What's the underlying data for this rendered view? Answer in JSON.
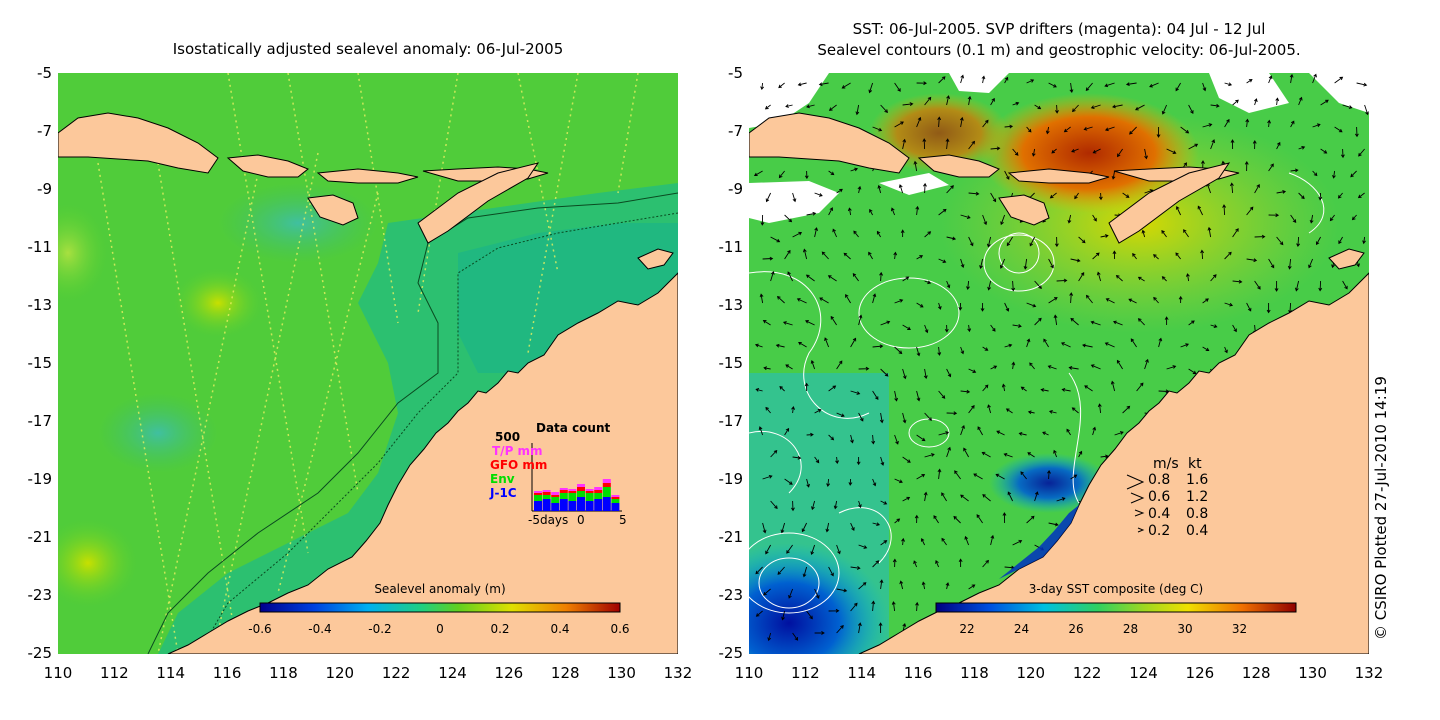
{
  "left_panel": {
    "title": "Isostatically adjusted sealevel anomaly: 06-Jul-2005",
    "colorbar": {
      "label": "Sealevel anomaly (m)",
      "ticks": [
        "-0.6",
        "-0.4",
        "-0.2",
        "0",
        "0.2",
        "0.4",
        "0.6"
      ]
    },
    "data_count": {
      "title": "Data count",
      "max_label": "500",
      "series": [
        {
          "name": "T/P mm",
          "color": "#ff33ff"
        },
        {
          "name": "GFO mm",
          "color": "#ff0000"
        },
        {
          "name": "Env",
          "color": "#00dd00"
        },
        {
          "name": "J-1C",
          "color": "#0000ff"
        }
      ],
      "x_ticks": [
        "-5days",
        "0",
        "5"
      ]
    }
  },
  "right_panel": {
    "title_line1": "SST: 06-Jul-2005. SVP drifters (magenta): 04 Jul - 12 Jul",
    "title_line2": "Sealevel contours (0.1 m) and geostrophic velocity: 06-Jul-2005.",
    "colorbar": {
      "label": "3-day SST composite (deg C)",
      "ticks": [
        "22",
        "24",
        "26",
        "28",
        "30",
        "32"
      ]
    },
    "velocity_legend": {
      "header_ms": "m/s",
      "header_kt": "kt",
      "rows": [
        {
          "ms": "0.8",
          "kt": "1.6"
        },
        {
          "ms": "0.6",
          "kt": "1.2"
        },
        {
          "ms": "0.4",
          "kt": "0.8"
        },
        {
          "ms": "0.2",
          "kt": "0.4"
        }
      ]
    }
  },
  "axes": {
    "y_ticks": [
      "-5",
      "-7",
      "-9",
      "-11",
      "-13",
      "-15",
      "-17",
      "-19",
      "-21",
      "-23",
      "-25"
    ],
    "x_ticks": [
      "110",
      "112",
      "114",
      "116",
      "118",
      "120",
      "122",
      "124",
      "126",
      "128",
      "130",
      "132"
    ],
    "lon_range": [
      110,
      132
    ],
    "lat_range": [
      -25,
      -5
    ]
  },
  "credit": "© CSIRO Plotted 27-Jul-2010 14:19",
  "colors": {
    "land": "#fcc89b",
    "ocean_green": "#33cc33",
    "shelf_teal": "#00c080",
    "sst_warm": "#cc3300"
  }
}
